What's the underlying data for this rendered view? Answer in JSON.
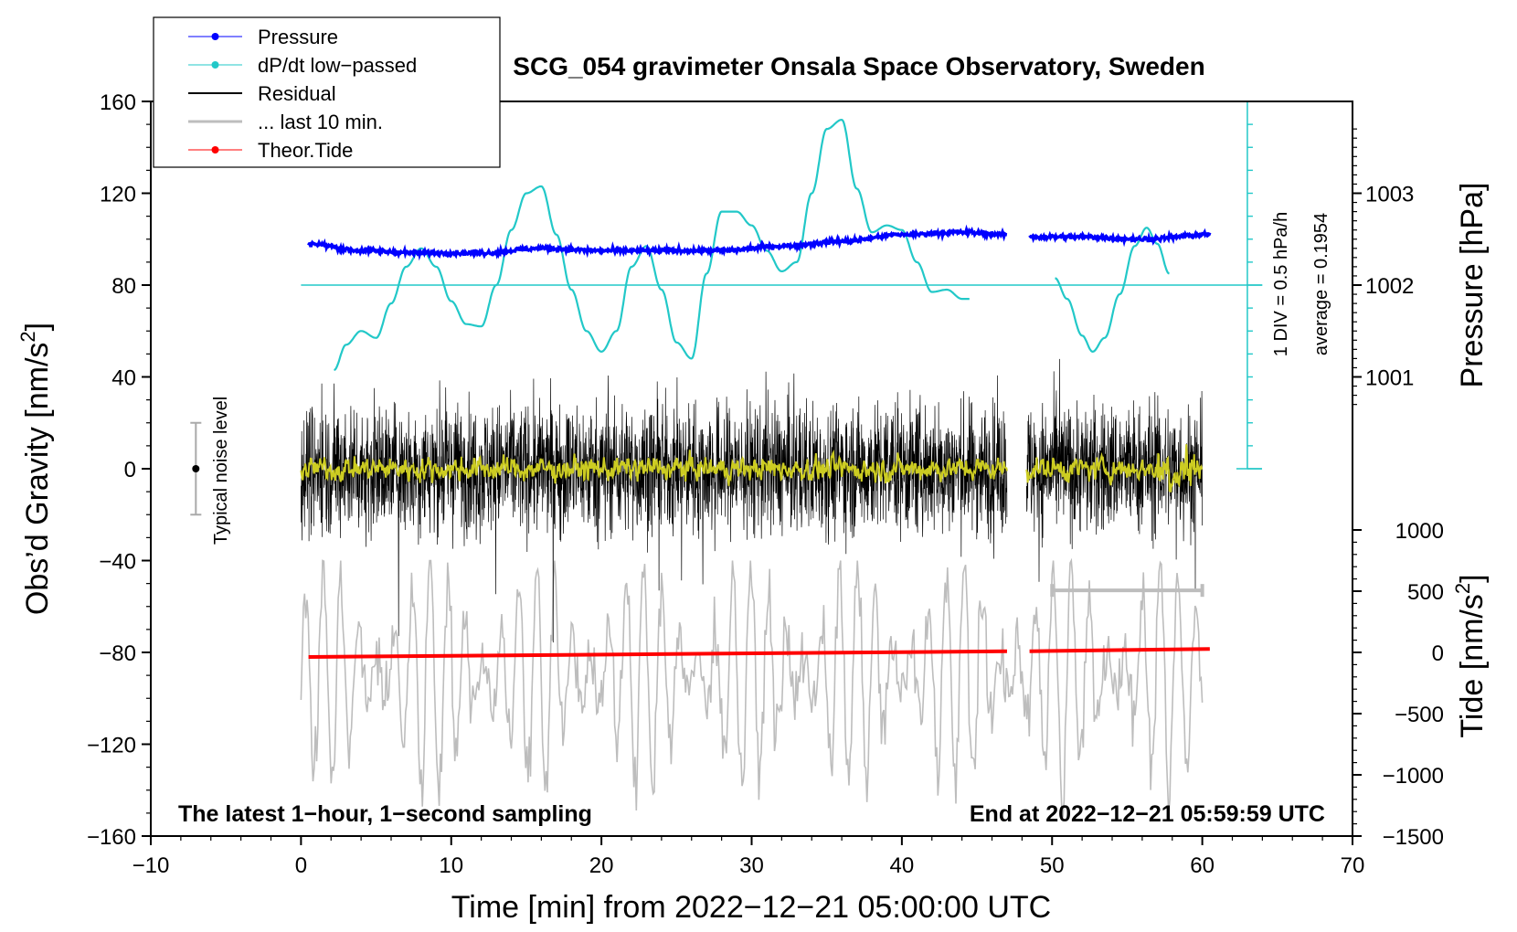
{
  "chart_data": {
    "type": "line",
    "title": "SCG_054 gravimeter Onsala Space Observatory, Sweden",
    "xlabel": "Time [min] from 2022−12−21 05:00:00 UTC",
    "ylabel_left": "Obs’d Gravity [nm/s²]",
    "ylabel_left_main": "Obs’d Gravity [nm/s",
    "ylabel_left_sup": "2",
    "ylabel_left_end": "]",
    "ylabel_pressure": "Pressure [hPa]",
    "ylabel_tide_main": "Tide [nm/s",
    "ylabel_tide_sup": "2",
    "ylabel_tide_end": "]",
    "xlim": [
      -10,
      70
    ],
    "ylim": [
      -160,
      160
    ],
    "x_ticks": [
      "−10",
      "0",
      "10",
      "20",
      "30",
      "40",
      "50",
      "60",
      "70"
    ],
    "x_tick_values": [
      -10,
      0,
      10,
      20,
      30,
      40,
      50,
      60,
      70
    ],
    "y_ticks": [
      "−160",
      "−120",
      "−80",
      "−40",
      "0",
      "40",
      "80",
      "120",
      "160"
    ],
    "y_tick_values": [
      -160,
      -120,
      -80,
      -40,
      0,
      40,
      80,
      120,
      160
    ],
    "pressure_ticks": [
      "1001",
      "1002",
      "1003"
    ],
    "pressure_tick_values": [
      1001,
      1002,
      1003
    ],
    "pressure_axis_map": {
      "hpa_at_80": 1002,
      "units_per_hpa": 40
    },
    "tide_ticks": [
      "−1500",
      "−1000",
      "−500",
      "0",
      "500",
      "1000"
    ],
    "tide_tick_values": [
      -1500,
      -1000,
      -500,
      0,
      500,
      1000
    ],
    "tide_axis_map": {
      "tide_at_minus80": 0,
      "tide_per_unit": 18.75
    },
    "annotation_left": "The latest 1−hour, 1−second sampling",
    "annotation_right": "End at 2022−12−21 05:59:59 UTC",
    "noise_label": "Typical noise level",
    "noise_level": {
      "x": -7,
      "center": 0,
      "half_range": 20
    },
    "dpdt_scale_label": "1 DIV = 0.5 hPa/h",
    "dpdt_average_label": "average = 0.1954",
    "dpdt_baseline": 80,
    "dpdt_scale_x": 63,
    "dpdt_scale_range": [
      0,
      160
    ],
    "last10_bar": {
      "x_start": 50,
      "x_end": 60,
      "y": -53
    },
    "legend": [
      {
        "label": "Pressure",
        "color": "#0000ff",
        "style": "line-dot"
      },
      {
        "label": "dP/dt low−passed",
        "color": "#22c8c8",
        "style": "line-dot"
      },
      {
        "label": "Residual",
        "color": "#000000",
        "style": "line"
      },
      {
        "label": "... last 10 min.",
        "color": "#bdbdbd",
        "style": "line"
      },
      {
        "label": "Theor.Tide",
        "color": "#ff0000",
        "style": "line-dot"
      }
    ],
    "series": [
      {
        "name": "Pressure",
        "color": "#0000ff",
        "segments": [
          {
            "x": [
              0.5,
              4,
              8,
              12,
              16,
              20,
              24,
              28,
              32,
              36,
              40,
              44,
              47
            ],
            "y": [
              98,
              95,
              94,
              94,
              96,
              95,
              95,
              95,
              97,
              99,
              102,
              103,
              102
            ]
          },
          {
            "x": [
              48.5,
              52,
              56,
              60.5
            ],
            "y": [
              101,
              101,
              100,
              102
            ]
          }
        ]
      },
      {
        "name": "dP/dt low−passed",
        "color": "#22c8c8",
        "segments": [
          {
            "x": [
              2.2,
              3,
              4,
              5,
              6,
              7,
              8,
              9,
              10,
              11,
              12,
              13,
              14,
              15,
              16,
              17,
              18,
              19,
              20,
              21,
              22,
              23,
              24,
              25,
              26,
              27,
              28,
              29,
              30,
              31,
              32,
              33,
              34,
              35,
              36,
              37,
              38,
              39,
              40,
              41,
              42,
              43,
              44,
              44.5
            ],
            "y": [
              43,
              54,
              60,
              57,
              72,
              88,
              96,
              88,
              73,
              63,
              62,
              80,
              104,
              120,
              123,
              102,
              78,
              60,
              51,
              60,
              88,
              97,
              78,
              55,
              48,
              85,
              112,
              112,
              106,
              95,
              86,
              90,
              120,
              148,
              152,
              122,
              103,
              106,
              104,
              90,
              77,
              78,
              74,
              74
            ]
          },
          {
            "x": [
              50.2,
              51,
              52,
              52.7,
              53.5,
              54.5,
              55.5,
              56.3,
              57,
              57.8
            ],
            "y": [
              83,
              74,
              58,
              51,
              57,
              76,
              97,
              105,
              98,
              85
            ]
          }
        ]
      },
      {
        "name": "Residual",
        "color": "#000000",
        "segments": [
          {
            "x_range": [
              0,
              47
            ]
          },
          {
            "x_range": [
              48.3,
              60
            ]
          }
        ],
        "approx_amplitude": 40,
        "approx_extremes": [
          -80,
          77
        ]
      },
      {
        "name": "Residual low−passed",
        "color": "#cccc22",
        "segments": [
          {
            "x_range": [
              0,
              47
            ]
          },
          {
            "x_range": [
              48.3,
              60
            ]
          }
        ],
        "approx_amplitude": 5
      },
      {
        "name": "... last 10 min.",
        "color": "#bdbdbd",
        "segments": [
          {
            "x_range": [
              0,
              60
            ]
          }
        ],
        "approx_center": -90,
        "approx_amplitude": 50
      },
      {
        "name": "Theor.Tide",
        "color": "#ff0000",
        "segments": [
          {
            "x": [
              0.5,
              47
            ],
            "y": [
              -82,
              -79.5
            ]
          },
          {
            "x": [
              48.5,
              60.5
            ],
            "y": [
              -79.5,
              -78.5
            ]
          }
        ]
      }
    ]
  }
}
